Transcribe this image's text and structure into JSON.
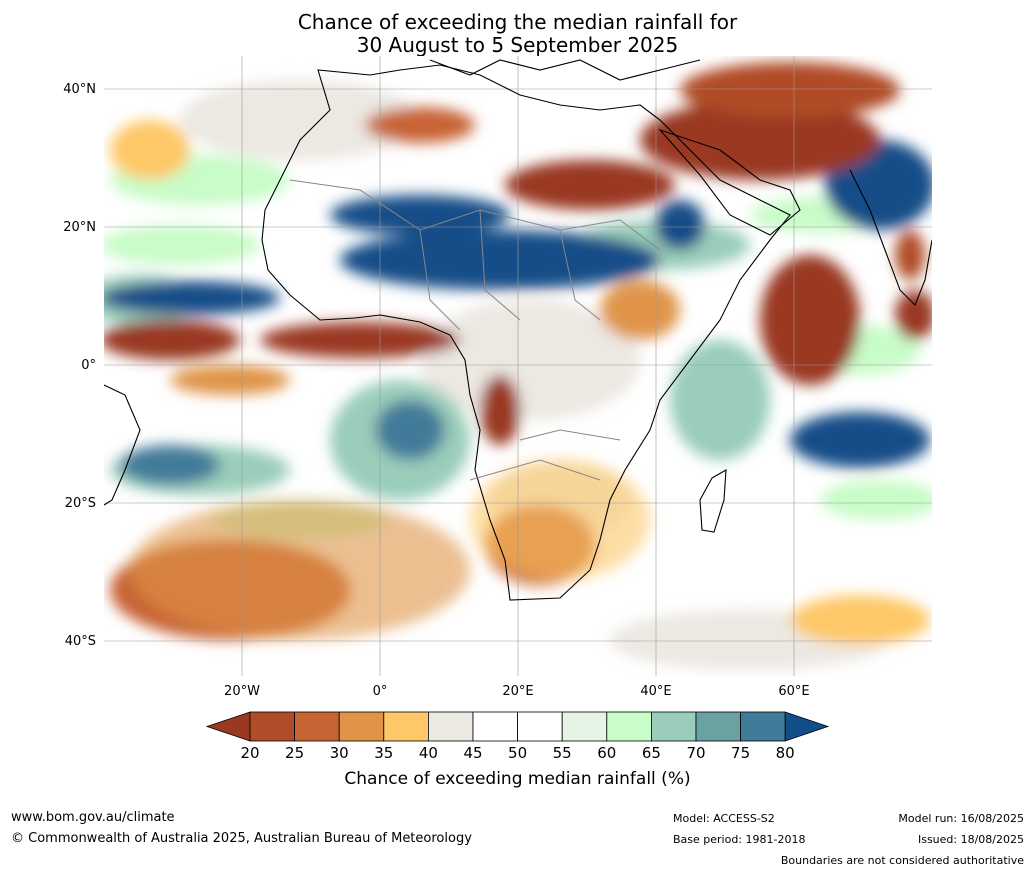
{
  "title": {
    "line1": "Chance of exceeding the median rainfall for",
    "line2": "30 August to 5 September 2025"
  },
  "axes": {
    "lat_labels": [
      "40°N",
      "20°N",
      "0°",
      "20°S",
      "40°S"
    ],
    "lat_values": [
      40,
      20,
      0,
      -20,
      -40
    ],
    "lon_labels": [
      "20°W",
      "0°",
      "20°E",
      "40°E",
      "60°E"
    ],
    "lon_values": [
      -20,
      0,
      20,
      40,
      60
    ],
    "lon_range": [
      -40,
      80
    ],
    "lat_range": [
      -45,
      45
    ]
  },
  "colorbar": {
    "label": "Chance of exceeding median rainfall (%)",
    "ticks": [
      "20",
      "25",
      "30",
      "35",
      "40",
      "45",
      "50",
      "55",
      "60",
      "65",
      "70",
      "75",
      "80"
    ],
    "colors": [
      "#9a3820",
      "#b04c28",
      "#c86434",
      "#e09448",
      "#fec868",
      "#ece8e2",
      "#ffffff",
      "#ffffff",
      "#e6f4e6",
      "#c8fcc8",
      "#9acdba",
      "#6aa1a1",
      "#427a9a",
      "#124e88"
    ]
  },
  "footer": {
    "website": "www.bom.gov.au/climate",
    "copyright": "© Commonwealth of Australia 2025, Australian Bureau of Meteorology",
    "model": "Model: ACCESS-S2",
    "base_period": "Base period: 1981-2018",
    "model_run": "Model run: 16/08/2025",
    "issued": "Issued: 18/08/2025",
    "disclaimer": "Boundaries are not considered authoritative"
  }
}
